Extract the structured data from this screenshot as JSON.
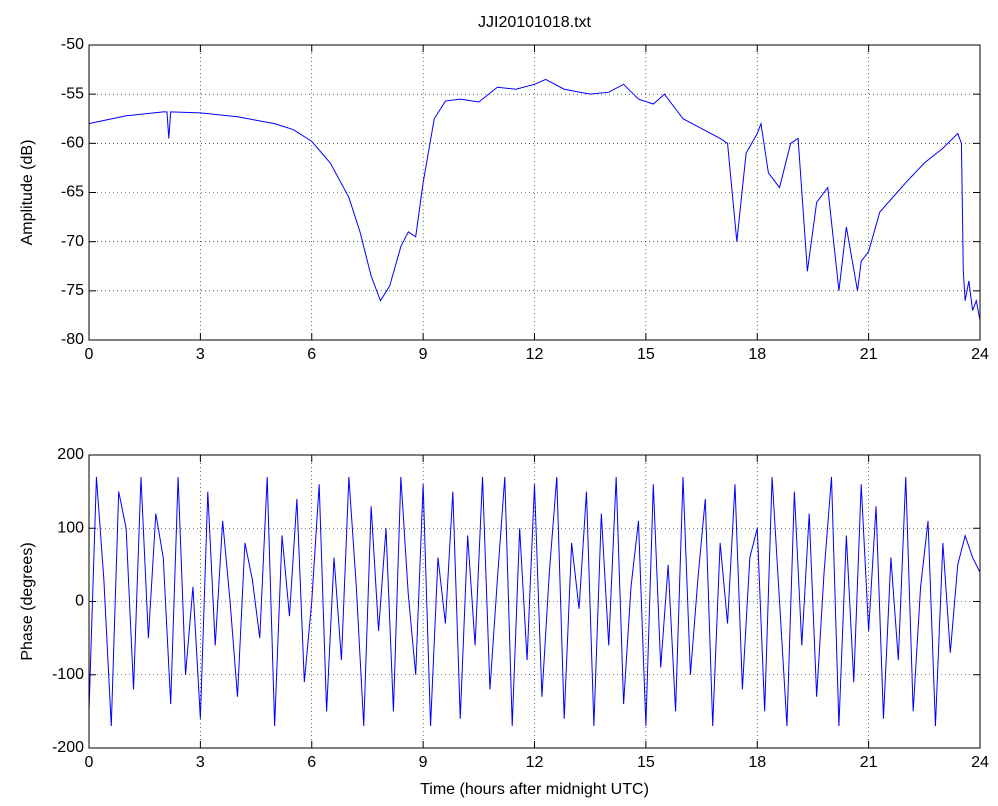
{
  "chart_data": [
    {
      "type": "line",
      "title": "JJI20101018.txt",
      "ylabel": "Amplitude (dB)",
      "x": [
        0,
        1,
        2,
        2.1,
        2.15,
        2.2,
        3,
        4,
        5,
        5.5,
        6,
        6.5,
        7,
        7.3,
        7.6,
        7.85,
        8.1,
        8.4,
        8.6,
        8.8,
        9.0,
        9.3,
        9.6,
        10,
        10.5,
        11,
        11.5,
        12,
        12.3,
        12.8,
        13.5,
        14,
        14.4,
        14.8,
        15.2,
        15.5,
        16,
        16.5,
        17,
        17.2,
        17.45,
        17.7,
        18,
        18.1,
        18.3,
        18.6,
        18.9,
        19.1,
        19.35,
        19.6,
        19.9,
        20.2,
        20.4,
        20.7,
        20.8,
        21,
        21.3,
        22,
        22.5,
        23,
        23.4,
        23.5,
        23.55,
        23.6,
        23.7,
        23.8,
        23.9,
        24
      ],
      "series": [
        {
          "color": "#0000ff",
          "values": [
            -58,
            -57.2,
            -56.8,
            -56.8,
            -59.5,
            -56.8,
            -56.9,
            -57.3,
            -58,
            -58.6,
            -59.8,
            -62,
            -65.5,
            -69,
            -73.5,
            -76,
            -74.5,
            -70.5,
            -69,
            -69.5,
            -64,
            -57.5,
            -55.7,
            -55.5,
            -55.8,
            -54.3,
            -54.5,
            -54,
            -53.5,
            -54.5,
            -55,
            -54.8,
            -54,
            -55.5,
            -56,
            -55,
            -57.5,
            -58.5,
            -59.5,
            -60,
            -70,
            -61,
            -59,
            -58,
            -63,
            -64.5,
            -60,
            -59.5,
            -73,
            -66,
            -64.5,
            -75,
            -68.5,
            -75,
            -72,
            -71,
            -67,
            -64,
            -62,
            -60.5,
            -59,
            -60,
            -73,
            -76,
            -74,
            -77,
            -76,
            -78
          ]
        }
      ],
      "xlim": [
        0,
        24
      ],
      "xticks": [
        0,
        3,
        6,
        9,
        12,
        15,
        18,
        21,
        24
      ],
      "ylim": [
        -80,
        -50
      ],
      "yticks": [
        -80,
        -75,
        -70,
        -65,
        -60,
        -55,
        -50
      ],
      "grid": true
    },
    {
      "type": "line",
      "xlabel": "Time (hours after midnight UTC)",
      "ylabel": "Phase (degrees)",
      "x": [
        0,
        0.2,
        0.4,
        0.6,
        0.8,
        1,
        1.2,
        1.4,
        1.6,
        1.8,
        2,
        2.2,
        2.4,
        2.6,
        2.8,
        3,
        3.2,
        3.4,
        3.6,
        3.8,
        4,
        4.2,
        4.4,
        4.6,
        4.8,
        5,
        5.2,
        5.4,
        5.6,
        5.8,
        6,
        6.2,
        6.4,
        6.6,
        6.8,
        7,
        7.2,
        7.4,
        7.6,
        7.8,
        8,
        8.2,
        8.4,
        8.6,
        8.8,
        9,
        9.2,
        9.4,
        9.6,
        9.8,
        10,
        10.2,
        10.4,
        10.6,
        10.8,
        11,
        11.2,
        11.4,
        11.6,
        11.8,
        12,
        12.2,
        12.4,
        12.6,
        12.8,
        13,
        13.2,
        13.4,
        13.6,
        13.8,
        14,
        14.2,
        14.4,
        14.6,
        14.8,
        15,
        15.2,
        15.4,
        15.6,
        15.8,
        16,
        16.2,
        16.4,
        16.6,
        16.8,
        17,
        17.2,
        17.4,
        17.6,
        17.8,
        18,
        18.2,
        18.4,
        18.6,
        18.8,
        19,
        19.2,
        19.4,
        19.6,
        19.8,
        20,
        20.2,
        20.4,
        20.6,
        20.8,
        21,
        21.2,
        21.4,
        21.6,
        21.8,
        22,
        22.2,
        22.4,
        22.6,
        22.8,
        23,
        23.2,
        23.4,
        23.6,
        23.8,
        24
      ],
      "series": [
        {
          "color": "#0000ff",
          "values": [
            -150,
            170,
            30,
            -170,
            150,
            100,
            -120,
            170,
            -50,
            120,
            60,
            -140,
            170,
            -100,
            20,
            -160,
            150,
            -60,
            110,
            0,
            -130,
            80,
            30,
            -50,
            170,
            -170,
            90,
            -20,
            140,
            -110,
            0,
            160,
            -150,
            60,
            -80,
            170,
            20,
            -170,
            130,
            -40,
            100,
            -150,
            170,
            10,
            -100,
            160,
            -170,
            60,
            -30,
            150,
            -160,
            90,
            -60,
            170,
            -120,
            30,
            170,
            -170,
            100,
            -80,
            160,
            -130,
            40,
            170,
            -160,
            80,
            -10,
            150,
            -170,
            120,
            -60,
            170,
            -140,
            20,
            110,
            -170,
            160,
            -90,
            50,
            -150,
            170,
            -100,
            30,
            140,
            -170,
            80,
            -30,
            160,
            -120,
            60,
            100,
            -150,
            170,
            0,
            -170,
            150,
            -60,
            120,
            -130,
            40,
            170,
            -170,
            90,
            -110,
            160,
            -40,
            130,
            -160,
            60,
            -80,
            170,
            -150,
            20,
            110,
            -170,
            80,
            -70,
            50,
            90,
            60,
            40
          ]
        }
      ],
      "xlim": [
        0,
        24
      ],
      "xticks": [
        0,
        3,
        6,
        9,
        12,
        15,
        18,
        21,
        24
      ],
      "ylim": [
        -200,
        200
      ],
      "yticks": [
        -200,
        -100,
        0,
        100,
        200
      ],
      "grid": true
    }
  ]
}
